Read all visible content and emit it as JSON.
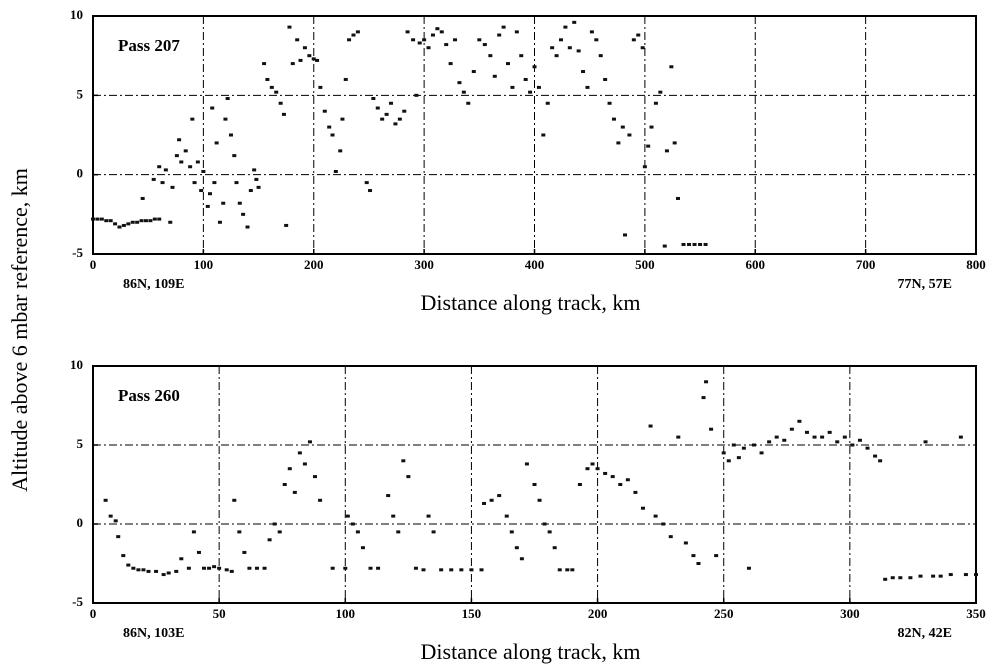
{
  "chart_data": [
    {
      "type": "scatter",
      "ylabel": "Altitude above 6 mbar reference, km",
      "xlabel": "Distance along track, km",
      "annotations": [
        "Pass 207",
        "86N, 109E",
        "77N, 57E"
      ],
      "xlim": [
        0,
        800
      ],
      "xticks": [
        0,
        100,
        200,
        300,
        400,
        500,
        600,
        700,
        800
      ],
      "ylim": [
        -5,
        10
      ],
      "yticks": [
        -5,
        0,
        5,
        10
      ],
      "grid": true,
      "series": [
        {
          "color": "#111111",
          "x": [
            0,
            4,
            8,
            12,
            16,
            20,
            24,
            28,
            32,
            36,
            40,
            44,
            48,
            52,
            56,
            60,
            45,
            55,
            60,
            63,
            66,
            70,
            72,
            76,
            78,
            80,
            84,
            88,
            90,
            92,
            95,
            98,
            100,
            104,
            106,
            108,
            110,
            112,
            115,
            118,
            120,
            122,
            125,
            128,
            130,
            133,
            136,
            140,
            143,
            146,
            148,
            150,
            155,
            158,
            162,
            166,
            170,
            173,
            175,
            178,
            181,
            185,
            188,
            192,
            196,
            200,
            203,
            206,
            210,
            214,
            217,
            220,
            224,
            226,
            229,
            232,
            236,
            240,
            248,
            251,
            254,
            258,
            262,
            266,
            270,
            274,
            278,
            282,
            285,
            290,
            293,
            296,
            300,
            304,
            308,
            312,
            316,
            320,
            324,
            328,
            332,
            336,
            340,
            345,
            350,
            355,
            360,
            364,
            368,
            372,
            376,
            380,
            384,
            388,
            392,
            396,
            400,
            404,
            408,
            412,
            416,
            420,
            424,
            428,
            432,
            436,
            440,
            444,
            448,
            452,
            456,
            460,
            464,
            468,
            472,
            476,
            480,
            482,
            486,
            490,
            494,
            498,
            500,
            503,
            506,
            510,
            514,
            518,
            520,
            524,
            527,
            530,
            535,
            540,
            545,
            550,
            555
          ],
          "values": [
            -2.8,
            -2.8,
            -2.8,
            -2.9,
            -2.9,
            -3.1,
            -3.3,
            -3.2,
            -3.1,
            -3.0,
            -3.0,
            -2.9,
            -2.9,
            -2.9,
            -2.8,
            -2.8,
            -1.5,
            -0.3,
            0.5,
            -0.5,
            0.3,
            -3.0,
            -0.8,
            1.2,
            2.2,
            0.8,
            1.5,
            0.5,
            3.5,
            -0.5,
            0.8,
            -1.0,
            0.2,
            -2.0,
            -1.2,
            4.2,
            -0.5,
            2.0,
            -3.0,
            -1.8,
            3.5,
            4.8,
            2.5,
            1.2,
            -0.5,
            -1.8,
            -2.5,
            -3.3,
            -1.0,
            0.3,
            -0.3,
            -0.8,
            7.0,
            6.0,
            5.5,
            5.2,
            4.5,
            3.8,
            -3.2,
            9.3,
            7.0,
            8.5,
            7.2,
            8.0,
            7.5,
            7.3,
            7.2,
            5.5,
            4.0,
            3.0,
            2.5,
            0.2,
            1.5,
            3.5,
            6.0,
            8.5,
            8.8,
            9.0,
            -0.5,
            -1.0,
            4.8,
            4.2,
            3.5,
            3.8,
            4.5,
            3.2,
            3.5,
            4.0,
            9.0,
            8.5,
            5.0,
            8.3,
            8.5,
            8.0,
            8.8,
            9.2,
            9.0,
            8.2,
            7.0,
            8.5,
            5.8,
            5.2,
            4.5,
            6.5,
            8.5,
            8.2,
            7.5,
            6.2,
            8.8,
            9.3,
            7.0,
            5.5,
            9.0,
            7.5,
            6.0,
            5.2,
            6.8,
            5.5,
            2.5,
            4.5,
            8.0,
            7.5,
            8.5,
            9.3,
            8.0,
            9.6,
            7.8,
            6.5,
            5.5,
            9.0,
            8.5,
            7.5,
            6.0,
            4.5,
            3.5,
            2.0,
            3.0,
            -3.8,
            2.5,
            8.5,
            8.8,
            8.0,
            0.5,
            1.8,
            3.0,
            4.5,
            5.2,
            -4.5,
            1.5,
            6.8,
            2.0,
            -1.5,
            -4.4,
            -4.4,
            -4.4,
            -4.4,
            -4.4
          ]
        }
      ]
    },
    {
      "type": "scatter",
      "xlabel": "Distance along track, km",
      "annotations": [
        "Pass 260",
        "86N, 103E",
        "82N, 42E"
      ],
      "xlim": [
        0,
        350
      ],
      "xticks": [
        0,
        50,
        100,
        150,
        200,
        250,
        300,
        350
      ],
      "ylim": [
        -5,
        10
      ],
      "yticks": [
        -5,
        0,
        5,
        10
      ],
      "grid": true,
      "series": [
        {
          "color": "#111111",
          "x": [
            5,
            7,
            9,
            10,
            12,
            14,
            16,
            18,
            20,
            22,
            25,
            28,
            30,
            33,
            35,
            38,
            40,
            42,
            44,
            46,
            48,
            50,
            53,
            55,
            56,
            58,
            60,
            62,
            65,
            68,
            70,
            72,
            74,
            76,
            78,
            80,
            82,
            84,
            86,
            88,
            90,
            95,
            100,
            101,
            103,
            105,
            107,
            110,
            113,
            117,
            119,
            121,
            123,
            125,
            128,
            131,
            133,
            135,
            138,
            142,
            146,
            150,
            154,
            155,
            158,
            161,
            164,
            166,
            168,
            170,
            172,
            175,
            177,
            179,
            181,
            183,
            185,
            188,
            190,
            193,
            196,
            198,
            200,
            203,
            206,
            209,
            212,
            215,
            218,
            221,
            223,
            226,
            229,
            232,
            235,
            238,
            240,
            242,
            243,
            245,
            247,
            250,
            252,
            254,
            256,
            258,
            260,
            262,
            265,
            268,
            271,
            274,
            277,
            280,
            283,
            286,
            289,
            292,
            295,
            298,
            301,
            304,
            307,
            310,
            312,
            314,
            317,
            320,
            324,
            328,
            330,
            333,
            336,
            340,
            344,
            346,
            350
          ],
          "values": [
            1.5,
            0.5,
            0.2,
            -0.8,
            -2.0,
            -2.6,
            -2.8,
            -2.9,
            -2.9,
            -3.0,
            -3.0,
            -3.2,
            -3.1,
            -3.0,
            -2.2,
            -2.8,
            -0.5,
            -1.8,
            -2.8,
            -2.8,
            -2.7,
            -2.8,
            -2.9,
            -3.0,
            1.5,
            -0.5,
            -1.8,
            -2.8,
            -2.8,
            -2.8,
            -1.0,
            0.0,
            -0.5,
            2.5,
            3.5,
            2.0,
            4.5,
            3.8,
            5.2,
            3.0,
            1.5,
            -2.8,
            -2.8,
            0.5,
            0.0,
            -0.5,
            -1.5,
            -2.8,
            -2.8,
            1.8,
            0.5,
            -0.5,
            4.0,
            3.0,
            -2.8,
            -2.9,
            0.5,
            -0.5,
            -2.9,
            -2.9,
            -2.9,
            -2.9,
            -2.9,
            1.3,
            1.5,
            1.8,
            0.5,
            -0.5,
            -1.5,
            -2.2,
            3.8,
            2.5,
            1.5,
            0.0,
            -0.5,
            -1.5,
            -2.9,
            -2.9,
            -2.9,
            2.5,
            3.5,
            3.8,
            3.5,
            3.2,
            3.0,
            2.5,
            2.8,
            2.0,
            1.0,
            6.2,
            0.5,
            0.0,
            -0.8,
            5.5,
            -1.2,
            -2.0,
            -2.5,
            8.0,
            9.0,
            6.0,
            -2.0,
            4.5,
            4.0,
            5.0,
            4.2,
            4.8,
            -2.8,
            5.0,
            4.5,
            5.2,
            5.5,
            5.3,
            6.0,
            6.5,
            5.8,
            5.5,
            5.5,
            5.8,
            5.2,
            5.5,
            5.0,
            5.3,
            4.8,
            4.3,
            4.0,
            -3.5,
            -3.4,
            -3.4,
            -3.4,
            -3.3,
            5.2,
            -3.3,
            -3.3,
            -3.2,
            5.5,
            -3.2,
            -3.2
          ]
        }
      ]
    }
  ]
}
